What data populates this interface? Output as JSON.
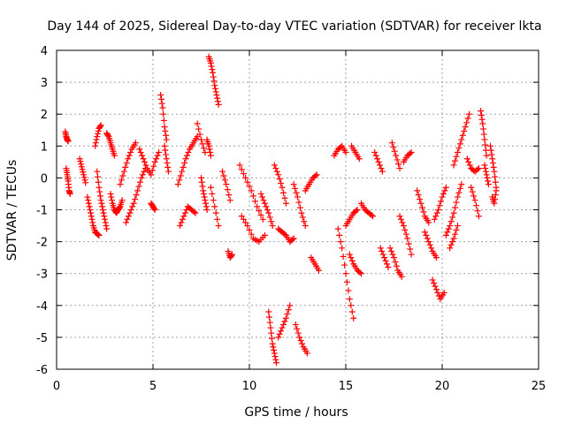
{
  "chart_data": {
    "type": "scatter",
    "title": "Day 144 of 2025, Sidereal Day-to-day VTEC variation (SDTVAR) for receiver lkta",
    "xlabel": "GPS time / hours",
    "ylabel": "SDTVAR / TECUs",
    "xlim": [
      0,
      25
    ],
    "ylim": [
      -6,
      4
    ],
    "x_ticks": [
      "0",
      "5",
      "10",
      "15",
      "20",
      "25"
    ],
    "y_ticks": [
      "4",
      "3",
      "2",
      "1",
      "0",
      "-1",
      "-2",
      "-3",
      "-4",
      "-5",
      "-6"
    ],
    "grid": true,
    "marker": "+",
    "color": "#ff0000",
    "series": [
      {
        "name": "SDTVAR",
        "tracks": [
          {
            "x": [
              0.45,
              0.5,
              0.55,
              0.6
            ],
            "y": [
              1.45,
              1.3,
              1.2,
              1.15
            ]
          },
          {
            "x": [
              0.5,
              0.55,
              0.6,
              0.65,
              0.7
            ],
            "y": [
              0.3,
              0.1,
              -0.1,
              -0.4,
              -0.5
            ]
          },
          {
            "x": [
              1.2,
              1.3,
              1.4,
              1.5
            ],
            "y": [
              0.6,
              0.35,
              0.1,
              -0.15
            ]
          },
          {
            "x": [
              1.6,
              1.7,
              1.8,
              1.9,
              2.0,
              2.1,
              2.2
            ],
            "y": [
              -0.6,
              -0.9,
              -1.2,
              -1.5,
              -1.7,
              -1.75,
              -1.8
            ]
          },
          {
            "x": [
              2.0,
              2.1,
              2.2,
              2.3
            ],
            "y": [
              1.0,
              1.3,
              1.55,
              1.65
            ]
          },
          {
            "x": [
              2.1,
              2.2,
              2.3,
              2.4,
              2.5,
              2.6
            ],
            "y": [
              0.2,
              -0.3,
              -0.7,
              -1.0,
              -1.3,
              -1.6
            ]
          },
          {
            "x": [
              2.6,
              2.7,
              2.8,
              2.9,
              3.0
            ],
            "y": [
              1.4,
              1.3,
              1.1,
              0.9,
              0.7
            ]
          },
          {
            "x": [
              2.8,
              2.9,
              3.0,
              3.1,
              3.2,
              3.3,
              3.4
            ],
            "y": [
              -0.5,
              -0.8,
              -1.0,
              -1.1,
              -1.0,
              -0.9,
              -0.7
            ]
          },
          {
            "x": [
              3.3,
              3.5,
              3.7,
              3.9,
              4.1
            ],
            "y": [
              -0.2,
              0.2,
              0.6,
              0.9,
              1.1
            ]
          },
          {
            "x": [
              3.6,
              3.8,
              4.0,
              4.2,
              4.4,
              4.6
            ],
            "y": [
              -1.4,
              -1.1,
              -0.8,
              -0.4,
              0.0,
              0.3
            ]
          },
          {
            "x": [
              4.3,
              4.5,
              4.7,
              4.9,
              5.1,
              5.3
            ],
            "y": [
              0.9,
              0.6,
              0.3,
              0.1,
              0.5,
              0.8
            ]
          },
          {
            "x": [
              4.9,
              5.0,
              5.1
            ],
            "y": [
              -0.8,
              -0.9,
              -1.0
            ]
          },
          {
            "x": [
              5.4,
              5.5,
              5.6,
              5.7
            ],
            "y": [
              2.6,
              2.2,
              1.6,
              1.2
            ]
          },
          {
            "x": [
              5.6,
              5.7,
              5.8
            ],
            "y": [
              1.0,
              0.6,
              0.2
            ]
          },
          {
            "x": [
              6.3,
              6.5,
              6.7,
              6.9,
              7.1,
              7.3
            ],
            "y": [
              -0.2,
              0.2,
              0.6,
              0.9,
              1.1,
              1.3
            ]
          },
          {
            "x": [
              6.4,
              6.6,
              6.8,
              7.0,
              7.2
            ],
            "y": [
              -1.5,
              -1.2,
              -0.9,
              -1.0,
              -1.1
            ]
          },
          {
            "x": [
              7.3,
              7.5,
              7.7
            ],
            "y": [
              1.7,
              1.2,
              0.8
            ]
          },
          {
            "x": [
              7.5,
              7.6,
              7.7,
              7.8
            ],
            "y": [
              0.0,
              -0.4,
              -0.7,
              -1.0
            ]
          },
          {
            "x": [
              7.9,
              8.0,
              8.1,
              8.2,
              8.3,
              8.4
            ],
            "y": [
              3.8,
              3.6,
              3.3,
              2.9,
              2.6,
              2.3
            ]
          },
          {
            "x": [
              7.8,
              7.9,
              8.0
            ],
            "y": [
              1.2,
              1.0,
              0.7
            ]
          },
          {
            "x": [
              8.0,
              8.2,
              8.4
            ],
            "y": [
              -0.3,
              -0.9,
              -1.5
            ]
          },
          {
            "x": [
              8.6,
              8.8,
              9.0
            ],
            "y": [
              0.2,
              -0.2,
              -0.7
            ]
          },
          {
            "x": [
              8.9,
              9.0,
              9.1
            ],
            "y": [
              -2.3,
              -2.5,
              -2.4
            ]
          },
          {
            "x": [
              9.5,
              9.8,
              10.1,
              10.4,
              10.7
            ],
            "y": [
              0.4,
              0.0,
              -0.4,
              -0.9,
              -1.3
            ]
          },
          {
            "x": [
              9.6,
              9.9,
              10.2,
              10.5,
              10.8
            ],
            "y": [
              -1.2,
              -1.5,
              -1.9,
              -2.0,
              -1.8
            ]
          },
          {
            "x": [
              10.6,
              10.8,
              11.0,
              11.2
            ],
            "y": [
              -0.5,
              -0.8,
              -1.1,
              -1.5
            ]
          },
          {
            "x": [
              11.0,
              11.1,
              11.2,
              11.3,
              11.4
            ],
            "y": [
              -4.2,
              -4.7,
              -5.2,
              -5.5,
              -5.8
            ]
          },
          {
            "x": [
              11.3,
              11.5,
              11.7,
              11.9
            ],
            "y": [
              0.4,
              0.1,
              -0.3,
              -0.8
            ]
          },
          {
            "x": [
              11.5,
              11.7,
              11.9,
              12.1
            ],
            "y": [
              -5.0,
              -4.7,
              -4.4,
              -4.0
            ]
          },
          {
            "x": [
              11.5,
              11.7,
              11.9,
              12.1,
              12.3
            ],
            "y": [
              -1.6,
              -1.7,
              -1.8,
              -2.0,
              -1.9
            ]
          },
          {
            "x": [
              12.4,
              12.6,
              12.8,
              13.0
            ],
            "y": [
              -4.6,
              -5.0,
              -5.3,
              -5.5
            ]
          },
          {
            "x": [
              12.3,
              12.5,
              12.7,
              12.9
            ],
            "y": [
              -0.2,
              -0.6,
              -1.1,
              -1.5
            ]
          },
          {
            "x": [
              12.9,
              13.1,
              13.3,
              13.5
            ],
            "y": [
              -0.4,
              -0.2,
              0.0,
              0.1
            ]
          },
          {
            "x": [
              13.2,
              13.4,
              13.6
            ],
            "y": [
              -2.5,
              -2.7,
              -2.9
            ]
          },
          {
            "x": [
              14.4,
              14.6,
              14.8,
              15.0
            ],
            "y": [
              0.7,
              0.9,
              1.0,
              0.8
            ]
          },
          {
            "x": [
              14.6,
              14.8,
              15.0,
              15.2,
              15.4
            ],
            "y": [
              -1.6,
              -2.2,
              -3.0,
              -3.8,
              -4.4
            ]
          },
          {
            "x": [
              15.2,
              15.4,
              15.6,
              15.8
            ],
            "y": [
              -2.4,
              -2.7,
              -2.9,
              -3.0
            ]
          },
          {
            "x": [
              15.0,
              15.2,
              15.4,
              15.6
            ],
            "y": [
              -1.5,
              -1.3,
              -1.1,
              -1.0
            ]
          },
          {
            "x": [
              15.3,
              15.5,
              15.7
            ],
            "y": [
              1.0,
              0.8,
              0.6
            ]
          },
          {
            "x": [
              15.8,
              16.0,
              16.2,
              16.4
            ],
            "y": [
              -0.8,
              -1.0,
              -1.1,
              -1.2
            ]
          },
          {
            "x": [
              16.5,
              16.7,
              16.9
            ],
            "y": [
              0.8,
              0.5,
              0.2
            ]
          },
          {
            "x": [
              16.8,
              17.0,
              17.2
            ],
            "y": [
              -2.2,
              -2.5,
              -2.8
            ]
          },
          {
            "x": [
              17.4,
              17.6,
              17.8
            ],
            "y": [
              1.1,
              0.7,
              0.3
            ]
          },
          {
            "x": [
              17.3,
              17.5,
              17.7,
              17.9
            ],
            "y": [
              -2.2,
              -2.5,
              -2.9,
              -3.1
            ]
          },
          {
            "x": [
              17.8,
              18.0,
              18.2,
              18.4
            ],
            "y": [
              -1.2,
              -1.5,
              -1.9,
              -2.4
            ]
          },
          {
            "x": [
              18.0,
              18.2,
              18.4
            ],
            "y": [
              0.5,
              0.7,
              0.8
            ]
          },
          {
            "x": [
              18.7,
              18.9,
              19.1,
              19.3
            ],
            "y": [
              -0.4,
              -0.8,
              -1.2,
              -1.4
            ]
          },
          {
            "x": [
              19.1,
              19.3,
              19.5,
              19.7
            ],
            "y": [
              -1.7,
              -2.0,
              -2.3,
              -2.5
            ]
          },
          {
            "x": [
              19.5,
              19.7,
              19.9,
              20.1
            ],
            "y": [
              -3.2,
              -3.5,
              -3.8,
              -3.6
            ]
          },
          {
            "x": [
              19.6,
              19.8,
              20.0,
              20.2
            ],
            "y": [
              -1.3,
              -1.0,
              -0.6,
              -0.3
            ]
          },
          {
            "x": [
              20.2,
              20.4,
              20.6,
              20.8,
              21.0
            ],
            "y": [
              -1.8,
              -1.5,
              -1.1,
              -0.6,
              -0.2
            ]
          },
          {
            "x": [
              20.6,
              20.8,
              21.0,
              21.2,
              21.4
            ],
            "y": [
              0.4,
              0.8,
              1.2,
              1.6,
              2.0
            ]
          },
          {
            "x": [
              20.4,
              20.6,
              20.8
            ],
            "y": [
              -2.2,
              -1.9,
              -1.5
            ]
          },
          {
            "x": [
              21.3,
              21.5,
              21.7,
              21.9
            ],
            "y": [
              0.6,
              0.3,
              0.2,
              0.3
            ]
          },
          {
            "x": [
              21.5,
              21.7,
              21.9
            ],
            "y": [
              -0.3,
              -0.7,
              -1.2
            ]
          },
          {
            "x": [
              22.0,
              22.1,
              22.2,
              22.3
            ],
            "y": [
              2.1,
              1.7,
              1.2,
              0.7
            ]
          },
          {
            "x": [
              22.2,
              22.3,
              22.4
            ],
            "y": [
              0.4,
              0.1,
              -0.2
            ]
          },
          {
            "x": [
              22.5,
              22.6,
              22.7,
              22.8
            ],
            "y": [
              1.0,
              0.6,
              0.2,
              -0.3
            ]
          },
          {
            "x": [
              22.6,
              22.7,
              22.8
            ],
            "y": [
              -0.6,
              -0.8,
              -0.4
            ]
          }
        ]
      }
    ]
  }
}
